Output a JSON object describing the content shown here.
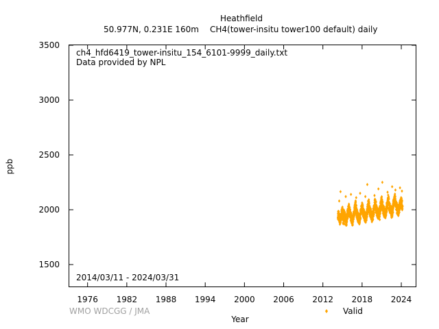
{
  "header": {
    "station": "Heathfield",
    "location": "50.977N, 0.231E 160m",
    "series": "CH4(tower-insitu tower100 default) daily"
  },
  "annotations": {
    "filename": "ch4_hfd6419_tower-insitu_154_6101-9999_daily.txt",
    "provider": "Data provided by NPL",
    "date_range": "2014/03/11 - 2024/03/31"
  },
  "footer": {
    "credit": "WMO WDCGG / JMA"
  },
  "colors": {
    "valid": "#ffa500",
    "axis": "#000000",
    "credit": "#a0a0a0"
  },
  "chart_data": {
    "type": "scatter",
    "title": "Heathfield",
    "xlabel": "Year",
    "ylabel": "ppb",
    "xlim": [
      1973.2,
      2026.2
    ],
    "ylim": [
      1300,
      3500
    ],
    "x_ticks": [
      "1976",
      "1982",
      "1988",
      "1994",
      "2000",
      "2006",
      "2012",
      "2018",
      "2024"
    ],
    "y_ticks": [
      "1500",
      "2000",
      "2500",
      "3000",
      "3500"
    ],
    "legend": {
      "position": "bottom-right",
      "entries": [
        {
          "label": "Valid",
          "marker": "diamond"
        }
      ]
    },
    "series": [
      {
        "name": "Valid",
        "points": [
          [
            2014.3,
            1930
          ],
          [
            2014.4,
            1960
          ],
          [
            2014.6,
            1900
          ],
          [
            2014.8,
            1950
          ],
          [
            2015.0,
            1990
          ],
          [
            2015.1,
            1910
          ],
          [
            2015.2,
            1960
          ],
          [
            2015.4,
            1930
          ],
          [
            2015.6,
            1895
          ],
          [
            2015.8,
            1970
          ],
          [
            2016.0,
            2010
          ],
          [
            2016.2,
            1950
          ],
          [
            2016.4,
            1920
          ],
          [
            2016.6,
            1905
          ],
          [
            2016.8,
            1980
          ],
          [
            2017.0,
            2040
          ],
          [
            2017.2,
            1960
          ],
          [
            2017.4,
            1930
          ],
          [
            2017.6,
            1910
          ],
          [
            2017.8,
            1975
          ],
          [
            2018.0,
            2030
          ],
          [
            2018.2,
            1970
          ],
          [
            2018.4,
            1940
          ],
          [
            2018.6,
            1920
          ],
          [
            2018.8,
            1990
          ],
          [
            2019.0,
            2060
          ],
          [
            2019.2,
            1985
          ],
          [
            2019.4,
            1950
          ],
          [
            2019.6,
            1930
          ],
          [
            2019.8,
            2000
          ],
          [
            2020.0,
            2070
          ],
          [
            2020.2,
            2000
          ],
          [
            2020.4,
            1965
          ],
          [
            2020.6,
            1950
          ],
          [
            2020.8,
            2020
          ],
          [
            2021.0,
            2080
          ],
          [
            2021.2,
            2010
          ],
          [
            2021.4,
            1975
          ],
          [
            2021.6,
            1960
          ],
          [
            2021.8,
            2030
          ],
          [
            2022.0,
            2100
          ],
          [
            2022.2,
            2020
          ],
          [
            2022.4,
            1990
          ],
          [
            2022.6,
            1975
          ],
          [
            2022.8,
            2045
          ],
          [
            2023.0,
            2110
          ],
          [
            2023.2,
            2040
          ],
          [
            2023.4,
            2000
          ],
          [
            2023.6,
            1990
          ],
          [
            2023.8,
            2050
          ],
          [
            2024.0,
            2070
          ],
          [
            2024.2,
            2030
          ],
          [
            2014.5,
            2080
          ],
          [
            2014.7,
            2165
          ],
          [
            2015.5,
            2120
          ],
          [
            2016.3,
            2140
          ],
          [
            2017.1,
            2110
          ],
          [
            2017.7,
            2150
          ],
          [
            2018.5,
            2120
          ],
          [
            2018.8,
            2230
          ],
          [
            2019.9,
            2130
          ],
          [
            2020.5,
            2190
          ],
          [
            2021.1,
            2250
          ],
          [
            2021.9,
            2160
          ],
          [
            2022.6,
            2210
          ],
          [
            2023.1,
            2180
          ],
          [
            2023.8,
            2200
          ],
          [
            2024.1,
            2170
          ],
          [
            2015.3,
            1870
          ],
          [
            2016.5,
            1860
          ],
          [
            2017.5,
            1880
          ],
          [
            2019.5,
            1890
          ],
          [
            2020.7,
            1910
          ],
          [
            2022.5,
            1930
          ],
          [
            2023.5,
            1950
          ]
        ]
      }
    ]
  }
}
